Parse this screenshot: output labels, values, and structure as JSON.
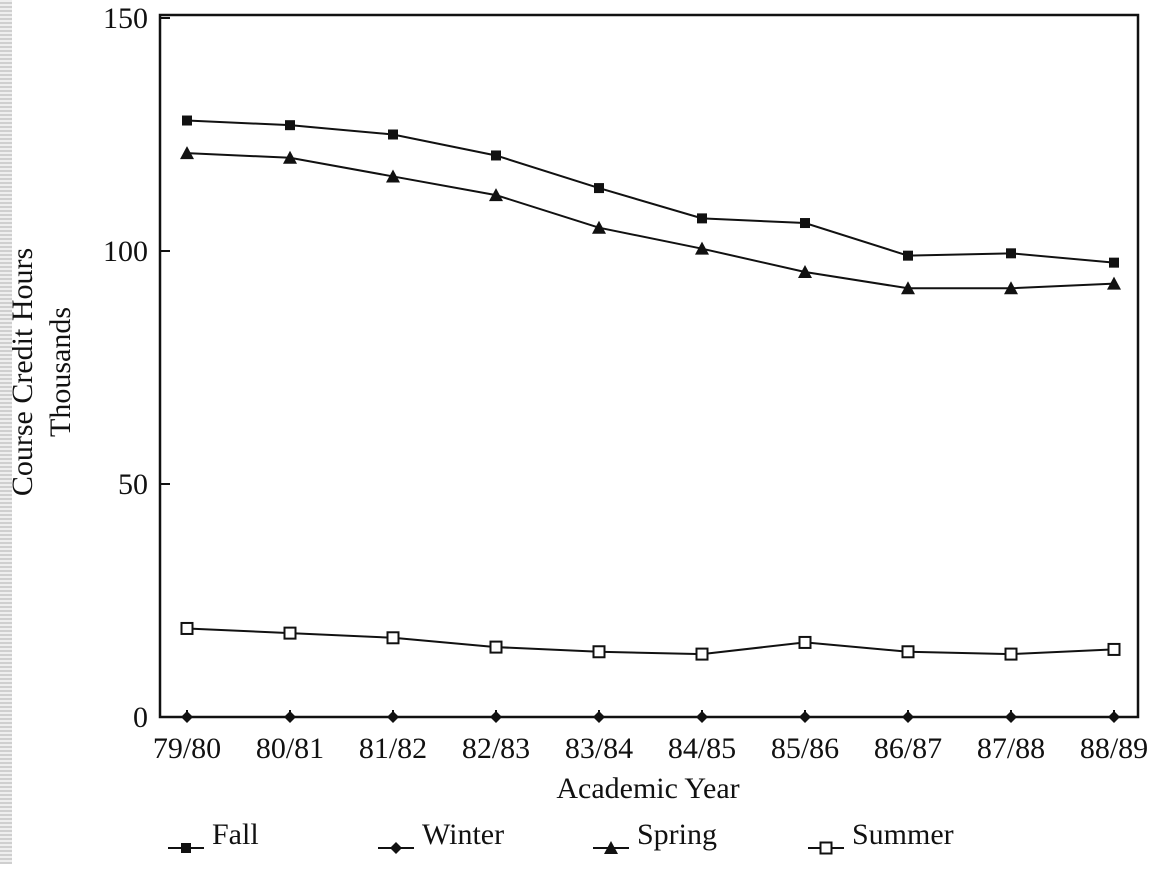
{
  "chart_data": {
    "type": "line",
    "title": "",
    "xlabel": "Academic Year",
    "ylabel": "Course Credit Hours",
    "ylabel_unit": "Thousands",
    "ylim": [
      0,
      150
    ],
    "yticks": [
      "0",
      "50",
      "100",
      "150"
    ],
    "categories": [
      "79/80",
      "80/81",
      "81/82",
      "82/83",
      "83/84",
      "84/85",
      "85/86",
      "86/87",
      "87/88",
      "88/89"
    ],
    "grid": false,
    "legend_position": "bottom",
    "series": [
      {
        "name": "Fall",
        "marker": "filled-square",
        "values": [
          128,
          127,
          125,
          120.5,
          113.5,
          107,
          106,
          99,
          99.5,
          97.5
        ]
      },
      {
        "name": "Winter",
        "marker": "filled-diamond",
        "values": [
          0,
          0,
          0,
          0,
          0,
          0,
          0,
          0,
          0,
          0
        ]
      },
      {
        "name": "Spring",
        "marker": "filled-triangle",
        "values": [
          121,
          120,
          116,
          112,
          105,
          100.5,
          95.5,
          92,
          92,
          93
        ]
      },
      {
        "name": "Summer",
        "marker": "open-square",
        "values": [
          19,
          18,
          17,
          15,
          14,
          13.5,
          16,
          14,
          13.5,
          14.5
        ]
      }
    ]
  }
}
